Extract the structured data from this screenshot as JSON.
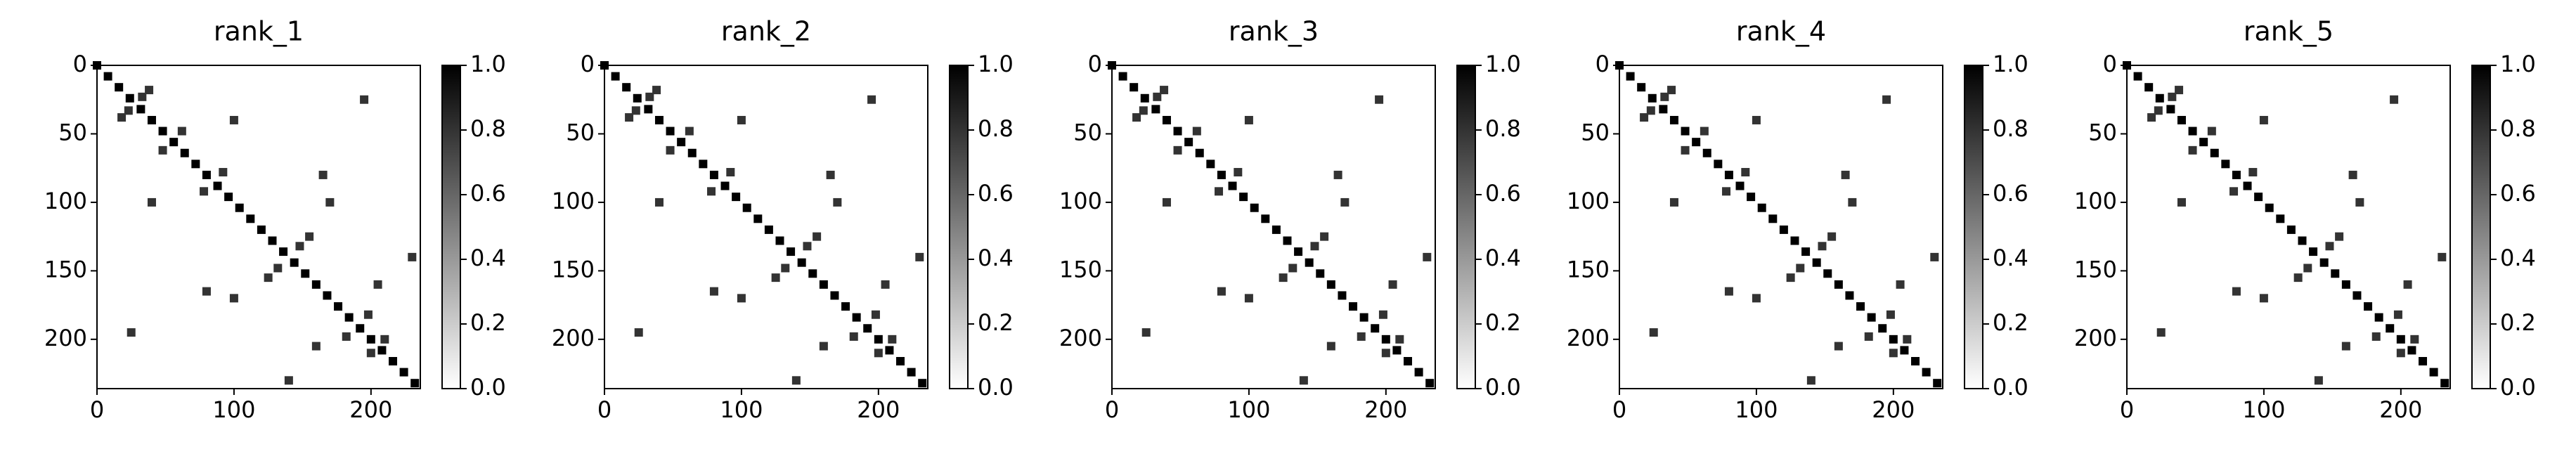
{
  "chart_data": [
    {
      "type": "heatmap",
      "title": "rank_1",
      "x": [
        0,
        8,
        16,
        24,
        32,
        40,
        48,
        56,
        64,
        72,
        80,
        88,
        96,
        104,
        112,
        120,
        128,
        136,
        144,
        152,
        160,
        168,
        176,
        184,
        192,
        200,
        208,
        216,
        224,
        232,
        18,
        38,
        23,
        33,
        48,
        62,
        78,
        92,
        132,
        148,
        125,
        155,
        182,
        198,
        200,
        210,
        100,
        40,
        195,
        25,
        165,
        80,
        205,
        160,
        140,
        230,
        100,
        170
      ],
      "y": [
        0,
        8,
        16,
        24,
        32,
        40,
        48,
        56,
        64,
        72,
        80,
        88,
        96,
        104,
        112,
        120,
        128,
        136,
        144,
        152,
        160,
        168,
        176,
        184,
        192,
        200,
        208,
        216,
        224,
        232,
        38,
        18,
        33,
        23,
        62,
        48,
        92,
        78,
        148,
        132,
        155,
        125,
        198,
        182,
        210,
        200,
        40,
        100,
        25,
        195,
        80,
        165,
        160,
        205,
        230,
        140,
        170,
        100
      ],
      "values": [
        1,
        1,
        1,
        1,
        1,
        1,
        1,
        1,
        1,
        1,
        1,
        1,
        1,
        1,
        1,
        1,
        1,
        1,
        1,
        1,
        1,
        1,
        1,
        1,
        1,
        1,
        1,
        1,
        1,
        1,
        0.8,
        0.8,
        0.8,
        0.8,
        0.8,
        0.8,
        0.8,
        0.8,
        0.8,
        0.8,
        0.8,
        0.8,
        0.8,
        0.8,
        0.8,
        0.8,
        0.8,
        0.8,
        0.8,
        0.8,
        0.8,
        0.8,
        0.8,
        0.8,
        0.8,
        0.8,
        0.8,
        0.8
      ],
      "xlim": [
        0,
        236
      ],
      "ylim": [
        236,
        0
      ],
      "xticks": [
        0,
        100,
        200
      ],
      "yticks": [
        0,
        50,
        100,
        150,
        200
      ],
      "clim": [
        0,
        1
      ],
      "cticks": [
        {
          "value": 0,
          "label": "0.0"
        },
        {
          "value": 0.2,
          "label": "0.2"
        },
        {
          "value": 0.4,
          "label": "0.4"
        },
        {
          "value": 0.6,
          "label": "0.6"
        },
        {
          "value": 0.8,
          "label": "0.8"
        },
        {
          "value": 1,
          "label": "1.0"
        }
      ]
    },
    {
      "type": "heatmap",
      "title": "rank_2",
      "x": [
        0,
        8,
        16,
        24,
        32,
        40,
        48,
        56,
        64,
        72,
        80,
        88,
        96,
        104,
        112,
        120,
        128,
        136,
        144,
        152,
        160,
        168,
        176,
        184,
        192,
        200,
        208,
        216,
        224,
        232,
        18,
        38,
        23,
        33,
        48,
        62,
        78,
        92,
        132,
        148,
        125,
        155,
        182,
        198,
        200,
        210,
        100,
        40,
        195,
        25,
        165,
        80,
        205,
        160,
        140,
        230,
        100,
        170
      ],
      "y": [
        0,
        8,
        16,
        24,
        32,
        40,
        48,
        56,
        64,
        72,
        80,
        88,
        96,
        104,
        112,
        120,
        128,
        136,
        144,
        152,
        160,
        168,
        176,
        184,
        192,
        200,
        208,
        216,
        224,
        232,
        38,
        18,
        33,
        23,
        62,
        48,
        92,
        78,
        148,
        132,
        155,
        125,
        198,
        182,
        210,
        200,
        40,
        100,
        25,
        195,
        80,
        165,
        160,
        205,
        230,
        140,
        170,
        100
      ],
      "values": [
        1,
        1,
        1,
        1,
        1,
        1,
        1,
        1,
        1,
        1,
        1,
        1,
        1,
        1,
        1,
        1,
        1,
        1,
        1,
        1,
        1,
        1,
        1,
        1,
        1,
        1,
        1,
        1,
        1,
        1,
        0.8,
        0.8,
        0.8,
        0.8,
        0.8,
        0.8,
        0.8,
        0.8,
        0.8,
        0.8,
        0.8,
        0.8,
        0.8,
        0.8,
        0.8,
        0.8,
        0.8,
        0.8,
        0.8,
        0.8,
        0.8,
        0.8,
        0.8,
        0.8,
        0.8,
        0.8,
        0.8,
        0.8
      ],
      "xlim": [
        0,
        236
      ],
      "ylim": [
        236,
        0
      ],
      "xticks": [
        0,
        100,
        200
      ],
      "yticks": [
        0,
        50,
        100,
        150,
        200
      ],
      "clim": [
        0,
        1
      ],
      "cticks": [
        {
          "value": 0,
          "label": "0.0"
        },
        {
          "value": 0.2,
          "label": "0.2"
        },
        {
          "value": 0.4,
          "label": "0.4"
        },
        {
          "value": 0.6,
          "label": "0.6"
        },
        {
          "value": 0.8,
          "label": "0.8"
        },
        {
          "value": 1,
          "label": "1.0"
        }
      ]
    },
    {
      "type": "heatmap",
      "title": "rank_3",
      "x": [
        0,
        8,
        16,
        24,
        32,
        40,
        48,
        56,
        64,
        72,
        80,
        88,
        96,
        104,
        112,
        120,
        128,
        136,
        144,
        152,
        160,
        168,
        176,
        184,
        192,
        200,
        208,
        216,
        224,
        232,
        18,
        38,
        23,
        33,
        48,
        62,
        78,
        92,
        132,
        148,
        125,
        155,
        182,
        198,
        200,
        210,
        100,
        40,
        195,
        25,
        165,
        80,
        205,
        160,
        140,
        230,
        100,
        170
      ],
      "y": [
        0,
        8,
        16,
        24,
        32,
        40,
        48,
        56,
        64,
        72,
        80,
        88,
        96,
        104,
        112,
        120,
        128,
        136,
        144,
        152,
        160,
        168,
        176,
        184,
        192,
        200,
        208,
        216,
        224,
        232,
        38,
        18,
        33,
        23,
        62,
        48,
        92,
        78,
        148,
        132,
        155,
        125,
        198,
        182,
        210,
        200,
        40,
        100,
        25,
        195,
        80,
        165,
        160,
        205,
        230,
        140,
        170,
        100
      ],
      "values": [
        1,
        1,
        1,
        1,
        1,
        1,
        1,
        1,
        1,
        1,
        1,
        1,
        1,
        1,
        1,
        1,
        1,
        1,
        1,
        1,
        1,
        1,
        1,
        1,
        1,
        1,
        1,
        1,
        1,
        1,
        0.8,
        0.8,
        0.8,
        0.8,
        0.8,
        0.8,
        0.8,
        0.8,
        0.8,
        0.8,
        0.8,
        0.8,
        0.8,
        0.8,
        0.8,
        0.8,
        0.8,
        0.8,
        0.8,
        0.8,
        0.8,
        0.8,
        0.8,
        0.8,
        0.8,
        0.8,
        0.8,
        0.8
      ],
      "xlim": [
        0,
        236
      ],
      "ylim": [
        236,
        0
      ],
      "xticks": [
        0,
        100,
        200
      ],
      "yticks": [
        0,
        50,
        100,
        150,
        200
      ],
      "clim": [
        0,
        1
      ],
      "cticks": [
        {
          "value": 0,
          "label": "0.0"
        },
        {
          "value": 0.2,
          "label": "0.2"
        },
        {
          "value": 0.4,
          "label": "0.4"
        },
        {
          "value": 0.6,
          "label": "0.6"
        },
        {
          "value": 0.8,
          "label": "0.8"
        },
        {
          "value": 1,
          "label": "1.0"
        }
      ]
    },
    {
      "type": "heatmap",
      "title": "rank_4",
      "x": [
        0,
        8,
        16,
        24,
        32,
        40,
        48,
        56,
        64,
        72,
        80,
        88,
        96,
        104,
        112,
        120,
        128,
        136,
        144,
        152,
        160,
        168,
        176,
        184,
        192,
        200,
        208,
        216,
        224,
        232,
        18,
        38,
        23,
        33,
        48,
        62,
        78,
        92,
        132,
        148,
        125,
        155,
        182,
        198,
        200,
        210,
        100,
        40,
        195,
        25,
        165,
        80,
        205,
        160,
        140,
        230,
        100,
        170
      ],
      "y": [
        0,
        8,
        16,
        24,
        32,
        40,
        48,
        56,
        64,
        72,
        80,
        88,
        96,
        104,
        112,
        120,
        128,
        136,
        144,
        152,
        160,
        168,
        176,
        184,
        192,
        200,
        208,
        216,
        224,
        232,
        38,
        18,
        33,
        23,
        62,
        48,
        92,
        78,
        148,
        132,
        155,
        125,
        198,
        182,
        210,
        200,
        40,
        100,
        25,
        195,
        80,
        165,
        160,
        205,
        230,
        140,
        170,
        100
      ],
      "values": [
        1,
        1,
        1,
        1,
        1,
        1,
        1,
        1,
        1,
        1,
        1,
        1,
        1,
        1,
        1,
        1,
        1,
        1,
        1,
        1,
        1,
        1,
        1,
        1,
        1,
        1,
        1,
        1,
        1,
        1,
        0.8,
        0.8,
        0.8,
        0.8,
        0.8,
        0.8,
        0.8,
        0.8,
        0.8,
        0.8,
        0.8,
        0.8,
        0.8,
        0.8,
        0.8,
        0.8,
        0.8,
        0.8,
        0.8,
        0.8,
        0.8,
        0.8,
        0.8,
        0.8,
        0.8,
        0.8,
        0.8,
        0.8
      ],
      "xlim": [
        0,
        236
      ],
      "ylim": [
        236,
        0
      ],
      "xticks": [
        0,
        100,
        200
      ],
      "yticks": [
        0,
        50,
        100,
        150,
        200
      ],
      "clim": [
        0,
        1
      ],
      "cticks": [
        {
          "value": 0,
          "label": "0.0"
        },
        {
          "value": 0.2,
          "label": "0.2"
        },
        {
          "value": 0.4,
          "label": "0.4"
        },
        {
          "value": 0.6,
          "label": "0.6"
        },
        {
          "value": 0.8,
          "label": "0.8"
        },
        {
          "value": 1,
          "label": "1.0"
        }
      ]
    },
    {
      "type": "heatmap",
      "title": "rank_5",
      "x": [
        0,
        8,
        16,
        24,
        32,
        40,
        48,
        56,
        64,
        72,
        80,
        88,
        96,
        104,
        112,
        120,
        128,
        136,
        144,
        152,
        160,
        168,
        176,
        184,
        192,
        200,
        208,
        216,
        224,
        232,
        18,
        38,
        23,
        33,
        48,
        62,
        78,
        92,
        132,
        148,
        125,
        155,
        182,
        198,
        200,
        210,
        100,
        40,
        195,
        25,
        165,
        80,
        205,
        160,
        140,
        230,
        100,
        170
      ],
      "y": [
        0,
        8,
        16,
        24,
        32,
        40,
        48,
        56,
        64,
        72,
        80,
        88,
        96,
        104,
        112,
        120,
        128,
        136,
        144,
        152,
        160,
        168,
        176,
        184,
        192,
        200,
        208,
        216,
        224,
        232,
        38,
        18,
        33,
        23,
        62,
        48,
        92,
        78,
        148,
        132,
        155,
        125,
        198,
        182,
        210,
        200,
        40,
        100,
        25,
        195,
        80,
        165,
        160,
        205,
        230,
        140,
        170,
        100
      ],
      "values": [
        1,
        1,
        1,
        1,
        1,
        1,
        1,
        1,
        1,
        1,
        1,
        1,
        1,
        1,
        1,
        1,
        1,
        1,
        1,
        1,
        1,
        1,
        1,
        1,
        1,
        1,
        1,
        1,
        1,
        1,
        0.8,
        0.8,
        0.8,
        0.8,
        0.8,
        0.8,
        0.8,
        0.8,
        0.8,
        0.8,
        0.8,
        0.8,
        0.8,
        0.8,
        0.8,
        0.8,
        0.8,
        0.8,
        0.8,
        0.8,
        0.8,
        0.8,
        0.8,
        0.8,
        0.8,
        0.8,
        0.8,
        0.8
      ],
      "xlim": [
        0,
        236
      ],
      "ylim": [
        236,
        0
      ],
      "xticks": [
        0,
        100,
        200
      ],
      "yticks": [
        0,
        50,
        100,
        150,
        200
      ],
      "clim": [
        0,
        1
      ],
      "cticks": [
        {
          "value": 0,
          "label": "0.0"
        },
        {
          "value": 0.2,
          "label": "0.2"
        },
        {
          "value": 0.4,
          "label": "0.4"
        },
        {
          "value": 0.6,
          "label": "0.6"
        },
        {
          "value": 0.8,
          "label": "0.8"
        },
        {
          "value": 1,
          "label": "1.0"
        }
      ]
    }
  ]
}
